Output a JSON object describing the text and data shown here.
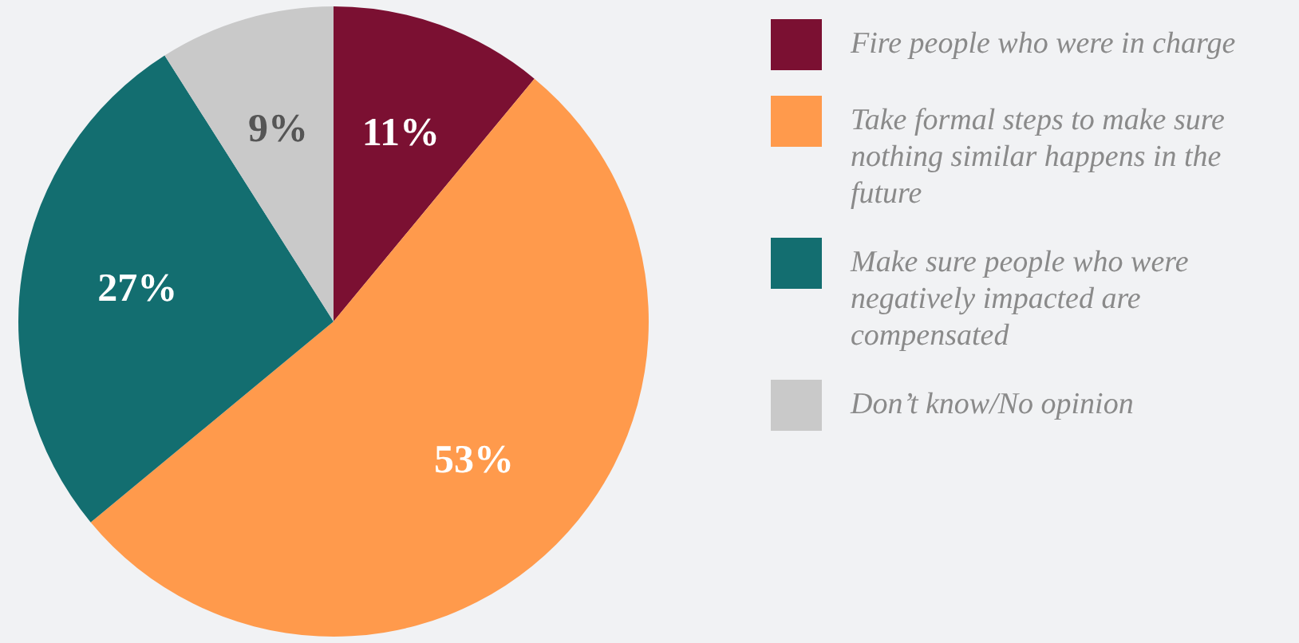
{
  "chart_data": {
    "type": "pie",
    "categories": [
      "Fire people who were in charge",
      "Take formal steps to make sure nothing similar happens in the future",
      "Make sure people who were negatively impacted are compensated",
      "Don’t know/No opinion"
    ],
    "values": [
      11,
      53,
      27,
      9
    ],
    "colors": [
      "#7b1032",
      "#ff9a4c",
      "#136e70",
      "#c9c9c9"
    ],
    "value_labels": [
      "11%",
      "53%",
      "27%",
      "9%"
    ],
    "legend": "right"
  }
}
